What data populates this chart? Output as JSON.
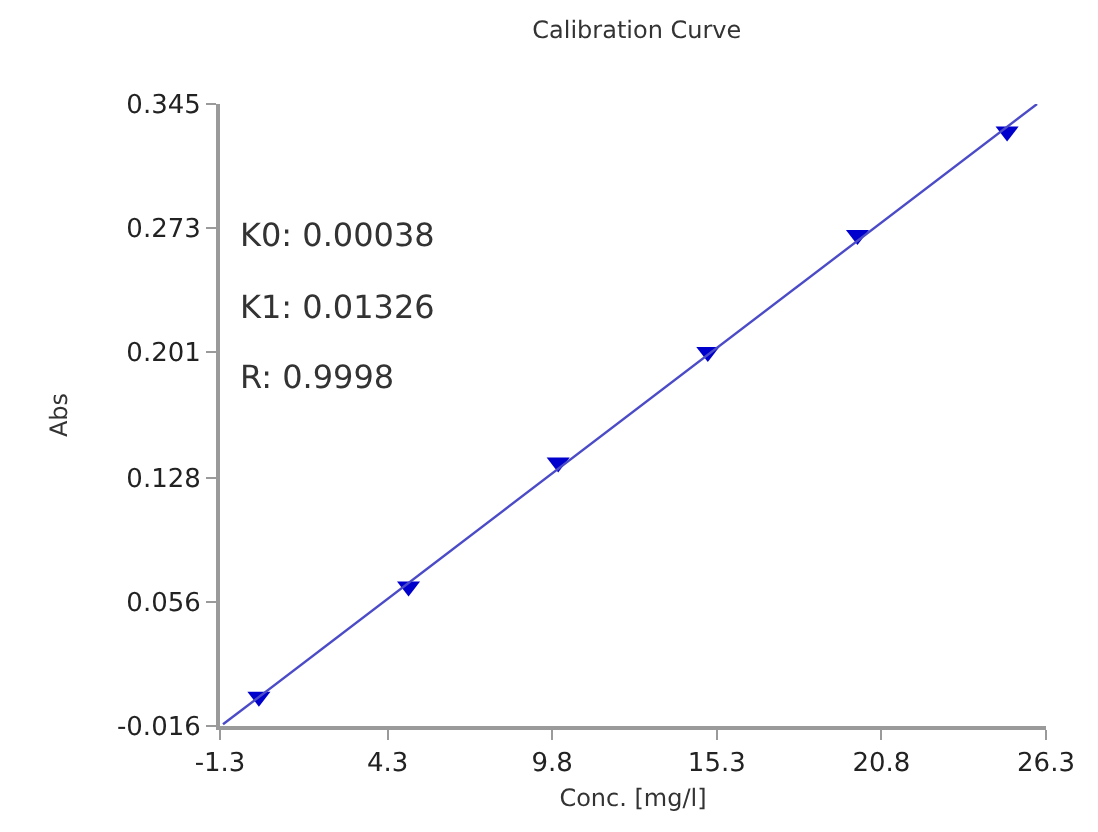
{
  "chart_data": {
    "type": "scatter",
    "title": "Calibration Curve",
    "xlabel": "Conc. [mg/l]",
    "ylabel": "Abs",
    "annotations": [
      "K0: 0.00038",
      "K1: 0.01326",
      "R: 0.9998"
    ],
    "x": [
      0,
      5,
      10,
      15,
      20,
      25
    ],
    "series": [
      {
        "color": "#0000cc",
        "marker": "triangle",
        "values": [
          0.001,
          0.065,
          0.137,
          0.201,
          0.269,
          0.329
        ]
      },
      {
        "type": "line",
        "color": "#4b4bc8",
        "marker": "none",
        "line_style": "solid",
        "x": [
          -1.2,
          26.0
        ],
        "values": [
          -0.015,
          0.345
        ]
      }
    ],
    "xlim": [
      -1.3,
      26.3
    ],
    "xticks": [
      -1.3,
      4.3,
      9.8,
      15.3,
      20.8,
      26.3
    ],
    "ylim": [
      -0.016,
      0.345
    ],
    "yticks": [
      -0.016,
      0.056,
      0.128,
      0.201,
      0.273,
      0.345
    ]
  }
}
